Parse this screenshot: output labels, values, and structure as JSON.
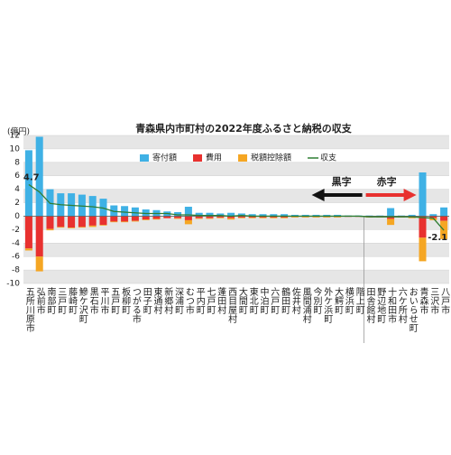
{
  "chart_data": {
    "type": "bar",
    "title": "青森県内市町村の2022年度ふるさと納税の収支",
    "y_label": "(億円)",
    "categories": [
      "五所川原市",
      "弘前市",
      "南部町",
      "三戸町",
      "藤崎町",
      "鰺ケ沢町",
      "黒石市",
      "平川市",
      "五戸町",
      "板柳町",
      "つがる市",
      "田子町",
      "東通村",
      "新郷村",
      "深浦町",
      "むつ市",
      "平内町",
      "七戸町",
      "蓬田村",
      "西目屋村",
      "大間町",
      "東北町",
      "中泊町",
      "六戸町",
      "鶴田町",
      "佐井村",
      "風間浦村",
      "今別町",
      "外ケ浜町",
      "大鰐町",
      "横浜町",
      "階上町",
      "田舎館村",
      "野辺地町",
      "十和田市",
      "六ケ所村",
      "おいらせ町",
      "青森市",
      "三沢市",
      "八戸市"
    ],
    "series": [
      {
        "name": "寄付額",
        "color": "#3fb1e5",
        "values": [
          9.8,
          11.8,
          4.0,
          3.4,
          3.4,
          3.2,
          3.0,
          2.6,
          1.6,
          1.5,
          1.3,
          1.0,
          0.9,
          0.7,
          0.6,
          1.4,
          0.5,
          0.5,
          0.4,
          0.5,
          0.4,
          0.3,
          0.3,
          0.3,
          0.3,
          0.2,
          0.2,
          0.2,
          0.2,
          0.2,
          0.1,
          0.1,
          0.1,
          0.1,
          1.2,
          0.1,
          0.2,
          6.5,
          0.3,
          1.3
        ]
      },
      {
        "name": "費用",
        "color": "#e8312f",
        "values": [
          -4.8,
          -6.0,
          -1.9,
          -1.6,
          -1.7,
          -1.6,
          -1.4,
          -1.3,
          -0.8,
          -0.8,
          -0.7,
          -0.5,
          -0.4,
          -0.3,
          -0.3,
          -0.6,
          -0.3,
          -0.3,
          -0.2,
          -0.3,
          -0.2,
          -0.2,
          -0.2,
          -0.2,
          -0.2,
          -0.1,
          -0.1,
          -0.1,
          -0.1,
          -0.1,
          -0.1,
          -0.1,
          -0.1,
          -0.1,
          -0.4,
          -0.1,
          -0.2,
          -3.2,
          -0.3,
          -0.7
        ]
      },
      {
        "name": "税額控除額",
        "color": "#f5a623",
        "values": [
          -0.3,
          -2.2,
          -0.2,
          -0.1,
          -0.1,
          -0.1,
          -0.2,
          -0.1,
          -0.1,
          -0.1,
          -0.1,
          -0.1,
          -0.1,
          0,
          -0.1,
          -0.6,
          -0.1,
          -0.1,
          -0.1,
          -0.2,
          -0.1,
          -0.1,
          -0.1,
          -0.1,
          -0.1,
          -0.1,
          -0.1,
          -0.1,
          -0.1,
          -0.1,
          0,
          0,
          -0.1,
          -0.1,
          -0.9,
          -0.1,
          -0.1,
          -3.5,
          -0.3,
          -2.7
        ]
      },
      {
        "name": "収支",
        "color": "#2e7d32",
        "type": "line",
        "values": [
          4.7,
          3.6,
          1.9,
          1.7,
          1.6,
          1.5,
          1.4,
          1.2,
          0.7,
          0.6,
          0.5,
          0.4,
          0.4,
          0.4,
          0.2,
          0.2,
          0.1,
          0.1,
          0.1,
          0.0,
          0.1,
          0.0,
          0.0,
          0.0,
          0.0,
          0.0,
          0.0,
          0.0,
          0.0,
          0.0,
          0.0,
          0.0,
          -0.1,
          -0.1,
          -0.1,
          -0.1,
          -0.1,
          -0.2,
          -0.3,
          -2.1
        ]
      }
    ],
    "ylim": [
      -10,
      12
    ],
    "yticks": [
      12,
      10,
      8,
      6,
      4,
      2,
      0,
      -2,
      -4,
      -6,
      -8,
      -10
    ],
    "grid": true,
    "annotations": [
      "黒字",
      "赤字"
    ]
  }
}
